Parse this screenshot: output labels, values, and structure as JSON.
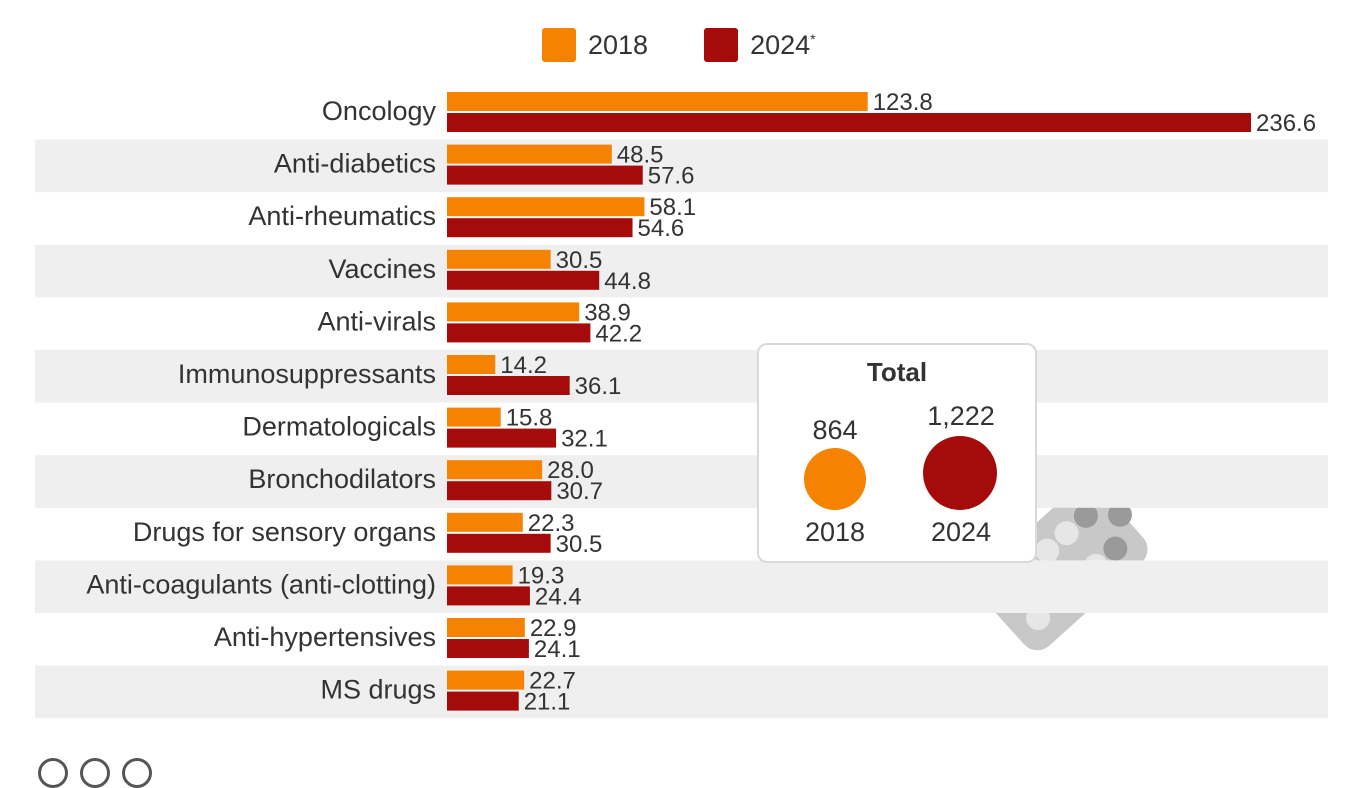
{
  "legend": {
    "items": [
      {
        "label": "2018",
        "sup": "",
        "color": "#f58200"
      },
      {
        "label": "2024",
        "sup": "*",
        "color": "#a50b0b"
      }
    ]
  },
  "chart_data": {
    "type": "bar",
    "orientation": "horizontal",
    "categories": [
      "Oncology",
      "Anti-diabetics",
      "Anti-rheumatics",
      "Vaccines",
      "Anti-virals",
      "Immunosuppressants",
      "Dermatologicals",
      "Bronchodilators",
      "Drugs for sensory organs",
      "Anti-coagulants (anti-clotting)",
      "Anti-hypertensives",
      "MS drugs"
    ],
    "series": [
      {
        "name": "2018",
        "color": "#f58200",
        "values": [
          123.8,
          48.5,
          58.1,
          30.5,
          38.9,
          14.2,
          15.8,
          28.0,
          22.3,
          19.3,
          22.9,
          22.7
        ],
        "labels": [
          "123.8",
          "48.5",
          "58.1",
          "30.5",
          "38.9",
          "14.2",
          "15.8",
          "28.0",
          "22.3",
          "19.3",
          "22.9",
          "22.7"
        ]
      },
      {
        "name": "2024*",
        "color": "#a50b0b",
        "values": [
          236.6,
          57.6,
          54.6,
          44.8,
          42.2,
          36.1,
          32.1,
          30.7,
          30.5,
          24.4,
          24.1,
          21.1
        ],
        "labels": [
          "236.6",
          "57.6",
          "54.6",
          "44.8",
          "42.2",
          "36.1",
          "32.1",
          "30.7",
          "30.5",
          "24.4",
          "24.1",
          "21.1"
        ]
      }
    ],
    "xlim": [
      0,
      236.6
    ],
    "grid": false
  },
  "total": {
    "title": "Total",
    "items": [
      {
        "value": "864",
        "year": "2018",
        "color": "#f58200"
      },
      {
        "value": "1,222",
        "year": "2024",
        "color": "#a50b0b"
      }
    ]
  }
}
